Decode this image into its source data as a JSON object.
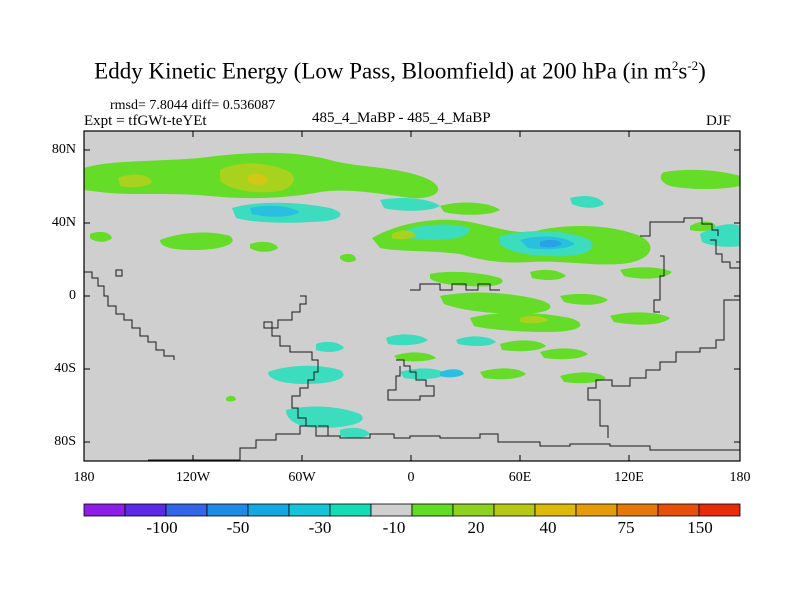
{
  "title": {
    "main": "Eddy Kinetic Energy (Low Pass, Bloomfield) at 200 hPa (in m",
    "sup1": "2",
    "mid": "s",
    "sup2": "-2",
    "end": ")"
  },
  "stats": "rmsd= 7.8044  diff= 0.536087",
  "expt": "Expt = tfGWt-teYEt",
  "case": "485_4_MaBP - 485_4_MaBP",
  "season": "DJF",
  "y_ticks": [
    "80N",
    "40N",
    "0",
    "40S",
    "80S"
  ],
  "x_ticks": [
    "180",
    "120W",
    "60W",
    "0",
    "60E",
    "120E",
    "180"
  ],
  "colorbar": {
    "colors": [
      "#8e1ee6",
      "#5a2ae6",
      "#3266e6",
      "#1e8ce6",
      "#14a8e0",
      "#14c4d8",
      "#14dcb4",
      "#cfcfcf",
      "#5fdc23",
      "#8cd21e",
      "#b4c814",
      "#dcb90a",
      "#e69b0a",
      "#e6780a",
      "#e6500a",
      "#e62d0a"
    ],
    "labels": [
      "-100",
      "-50",
      "-30",
      "-10",
      "20",
      "40",
      "75",
      "150"
    ]
  },
  "palette": {
    "green": "#64dc28",
    "teal": "#3cdcbe",
    "cyan": "#28bfe0",
    "blue": "#2aa0e6",
    "yellowgreen": "#a8d21e",
    "yellow": "#d2c814",
    "background": "#cfcfcf"
  }
}
